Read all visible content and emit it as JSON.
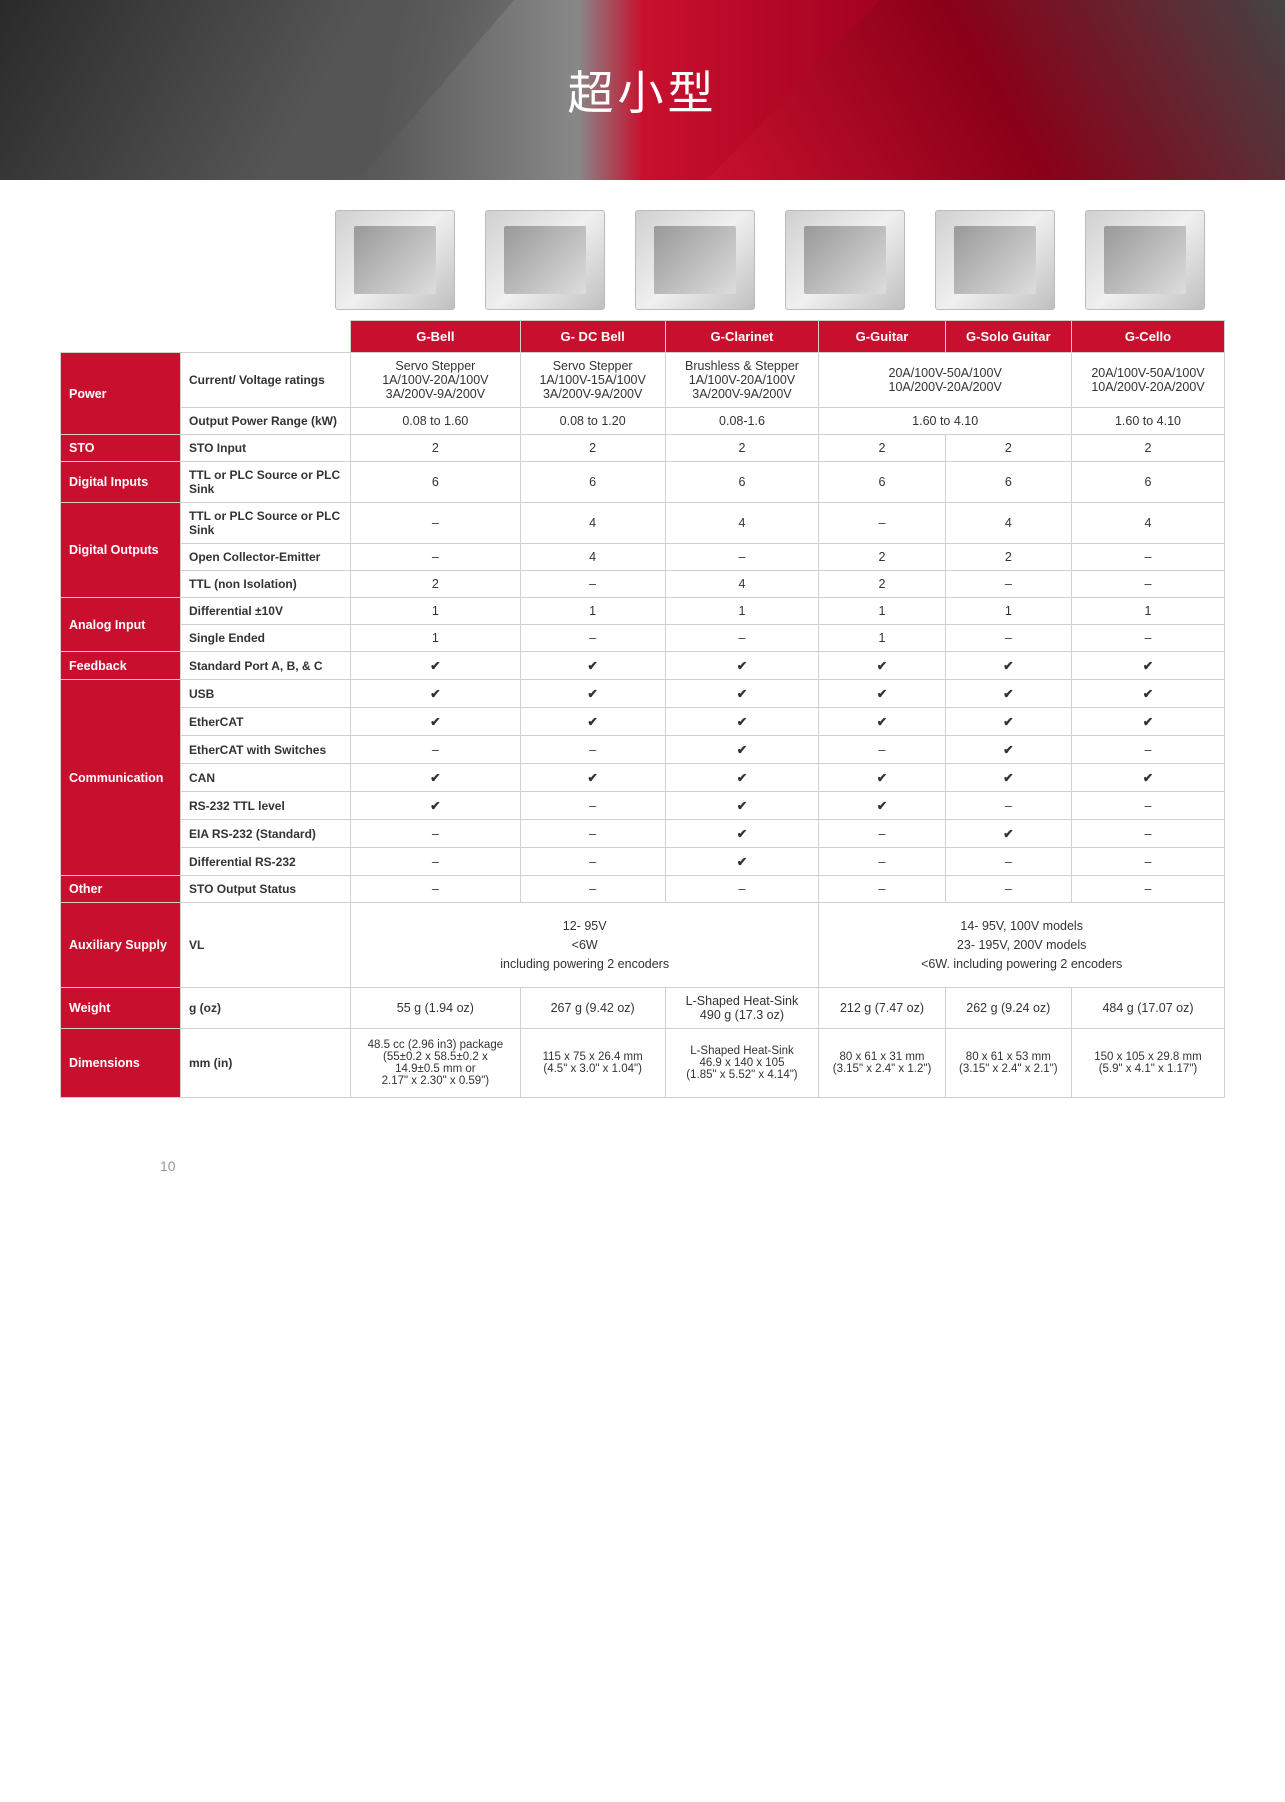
{
  "banner": {
    "title": "超小型"
  },
  "products": [
    "G-Bell",
    "G- DC Bell",
    "G-Clarinet",
    "G-Guitar",
    "G-Solo Guitar",
    "G-Cello"
  ],
  "categories": {
    "power": "Power",
    "sto": "STO",
    "digital_inputs": "Digital Inputs",
    "digital_outputs": "Digital Outputs",
    "analog_input": "Analog Input",
    "feedback": "Feedback",
    "communication": "Communication",
    "other": "Other",
    "aux_supply": "Auxiliary Supply",
    "weight": "Weight",
    "dimensions": "Dimensions"
  },
  "rows": {
    "current_voltage": {
      "label": "Current/ Voltage ratings",
      "gbell": "Servo Stepper\n1A/100V-20A/100V\n3A/200V-9A/200V",
      "gdcbell": "Servo Stepper\n1A/100V-15A/100V\n3A/200V-9A/200V",
      "gclarinet": "Brushless & Stepper\n1A/100V-20A/100V\n3A/200V-9A/200V",
      "gguitar_solo": "20A/100V-50A/100V\n10A/200V-20A/200V",
      "gcello": "20A/100V-50A/100V\n10A/200V-20A/200V"
    },
    "output_power": {
      "label": "Output Power Range (kW)",
      "vals": [
        "0.08 to 1.60",
        "0.08 to 1.20",
        "0.08-1.6",
        "1.60 to 4.10",
        "1.60 to 4.10"
      ]
    },
    "sto_input": {
      "label": "STO Input",
      "vals": [
        "2",
        "2",
        "2",
        "2",
        "2",
        "2"
      ]
    },
    "ttl_plc_in": {
      "label": "TTL or PLC Source or PLC Sink",
      "vals": [
        "6",
        "6",
        "6",
        "6",
        "6",
        "6"
      ]
    },
    "ttl_plc_out": {
      "label": "TTL or PLC Source or PLC Sink",
      "vals": [
        "–",
        "4",
        "4",
        "–",
        "4",
        "4"
      ]
    },
    "open_collector": {
      "label": "Open Collector-Emitter",
      "vals": [
        "–",
        "4",
        "–",
        "2",
        "2",
        "–"
      ]
    },
    "ttl_noniso": {
      "label": "TTL (non Isolation)",
      "vals": [
        "2",
        "–",
        "4",
        "2",
        "–",
        "–"
      ]
    },
    "diff_10v": {
      "label": "Differential ±10V",
      "vals": [
        "1",
        "1",
        "1",
        "1",
        "1",
        "1"
      ]
    },
    "single_ended": {
      "label": "Single Ended",
      "vals": [
        "1",
        "–",
        "–",
        "1",
        "–",
        "–"
      ]
    },
    "std_port": {
      "label": "Standard Port A, B, & C",
      "vals": [
        "Y",
        "Y",
        "Y",
        "Y",
        "Y",
        "Y"
      ]
    },
    "usb": {
      "label": "USB",
      "vals": [
        "Y",
        "Y",
        "Y",
        "Y",
        "Y",
        "Y"
      ]
    },
    "ethercat": {
      "label": "EtherCAT",
      "vals": [
        "Y",
        "Y",
        "Y",
        "Y",
        "Y",
        "Y"
      ]
    },
    "ethercat_sw": {
      "label": "EtherCAT with Switches",
      "vals": [
        "–",
        "–",
        "Y",
        "–",
        "Y",
        "–"
      ]
    },
    "can": {
      "label": "CAN",
      "vals": [
        "Y",
        "Y",
        "Y",
        "Y",
        "Y",
        "Y"
      ]
    },
    "rs232_ttl": {
      "label": "RS-232 TTL level",
      "vals": [
        "Y",
        "–",
        "Y",
        "Y",
        "–",
        "–"
      ]
    },
    "eia_rs232": {
      "label": "EIA RS-232 (Standard)",
      "vals": [
        "–",
        "–",
        "Y",
        "–",
        "Y",
        "–"
      ]
    },
    "diff_rs232": {
      "label": "Differential RS-232",
      "vals": [
        "–",
        "–",
        "Y",
        "–",
        "–",
        "–"
      ]
    },
    "sto_status": {
      "label": "STO Output Status",
      "vals": [
        "–",
        "–",
        "–",
        "–",
        "–",
        "–"
      ]
    },
    "vl": {
      "label": "VL",
      "left": "12- 95V\n<6W\nincluding powering 2 encoders",
      "right": "14- 95V,  100V models\n23- 195V, 200V models\n<6W. including powering 2 encoders"
    },
    "weight": {
      "label": "g (oz)",
      "vals": [
        "55 g (1.94 oz)",
        "267 g (9.42 oz)",
        "L-Shaped Heat-Sink\n490 g (17.3 oz)",
        "212 g (7.47 oz)",
        "262 g (9.24 oz)",
        "484 g (17.07 oz)"
      ]
    },
    "dimensions": {
      "label": "mm (in)",
      "vals": [
        "48.5 cc (2.96 in3) package\n(55±0.2 x 58.5±0.2 x\n14.9±0.5 mm or\n2.17\" x 2.30\" x 0.59\")",
        "115 x 75 x 26.4 mm\n(4.5\" x 3.0\" x 1.04\")",
        "L-Shaped Heat-Sink\n46.9 x 140 x 105\n(1.85\" x 5.52\" x 4.14\")",
        "80 x 61 x 31 mm\n(3.15\" x 2.4\" x 1.2\")",
        "80 x 61 x 53 mm\n(3.15\" x 2.4\" x 2.1\")",
        "150 x 105 x 29.8 mm\n(5.9\" x 4.1\" x 1.17\")"
      ]
    }
  },
  "page_number": "10",
  "colors": {
    "brand_red": "#c8102e",
    "text": "#333333",
    "border": "#d0d0d0"
  }
}
